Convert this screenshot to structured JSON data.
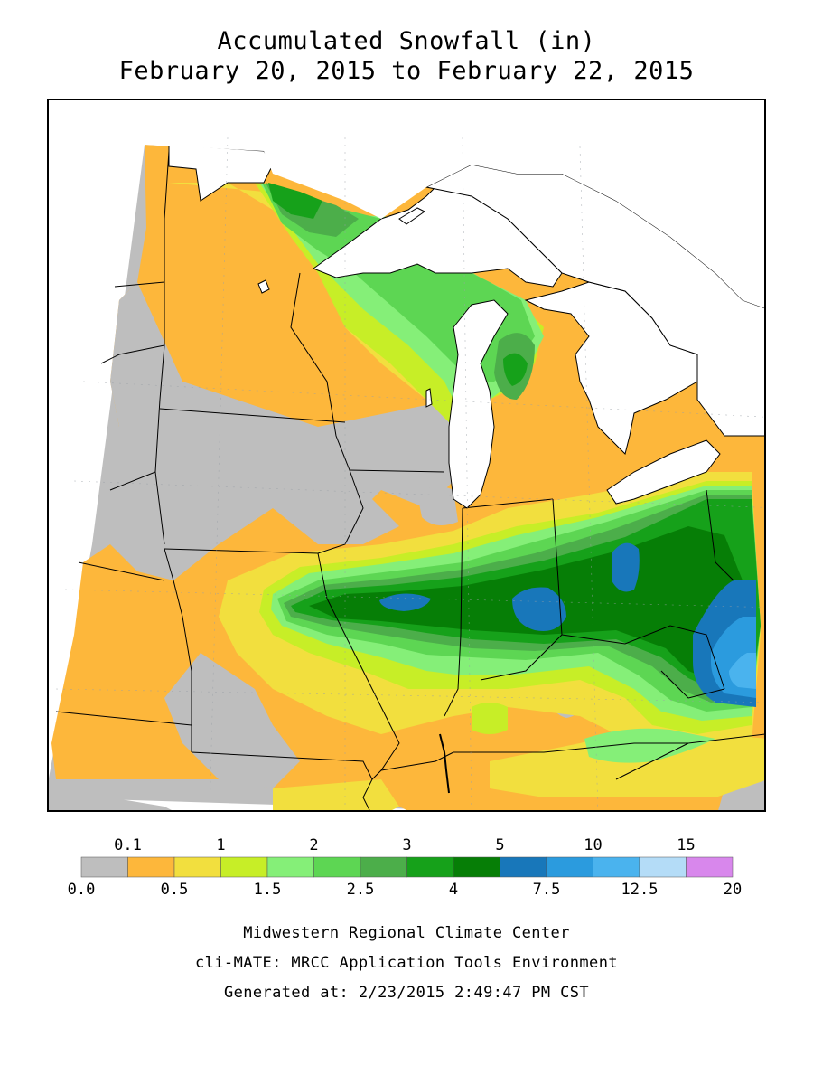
{
  "title": {
    "line1": "Accumulated Snowfall (in)",
    "line2": "February 20, 2015 to February 22, 2015"
  },
  "legend": {
    "upper_ticks": [
      "0.1",
      "1",
      "2",
      "3",
      "5",
      "10",
      "15"
    ],
    "lower_ticks": [
      "0.0",
      "0.5",
      "1.5",
      "2.5",
      "4",
      "7.5",
      "12.5",
      "20"
    ],
    "bins": [
      {
        "range": "0.0–0.1",
        "color": "#bebebe"
      },
      {
        "range": "0.1–0.5",
        "color": "#fdb73b"
      },
      {
        "range": "0.5–1",
        "color": "#f2df3e"
      },
      {
        "range": "1–1.5",
        "color": "#c7ee27"
      },
      {
        "range": "1.5–2",
        "color": "#85ef78"
      },
      {
        "range": "2–2.5",
        "color": "#5dd653"
      },
      {
        "range": "2.5–3",
        "color": "#4cae4a"
      },
      {
        "range": "3–4",
        "color": "#16a11a"
      },
      {
        "range": "4–5",
        "color": "#067e06"
      },
      {
        "range": "5–7.5",
        "color": "#1877ba"
      },
      {
        "range": "7.5–10",
        "color": "#2b9bde"
      },
      {
        "range": "10–12.5",
        "color": "#4ab3ee"
      },
      {
        "range": "12.5–15",
        "color": "#b4dcf7"
      },
      {
        "range": "15–20",
        "color": "#d887ec"
      }
    ]
  },
  "credits": {
    "line1": "Midwestern Regional Climate Center",
    "line2": "cli-MATE: MRCC Application Tools Environment",
    "line3": "Generated at: 2/23/2015 2:49:47 PM CST"
  }
}
